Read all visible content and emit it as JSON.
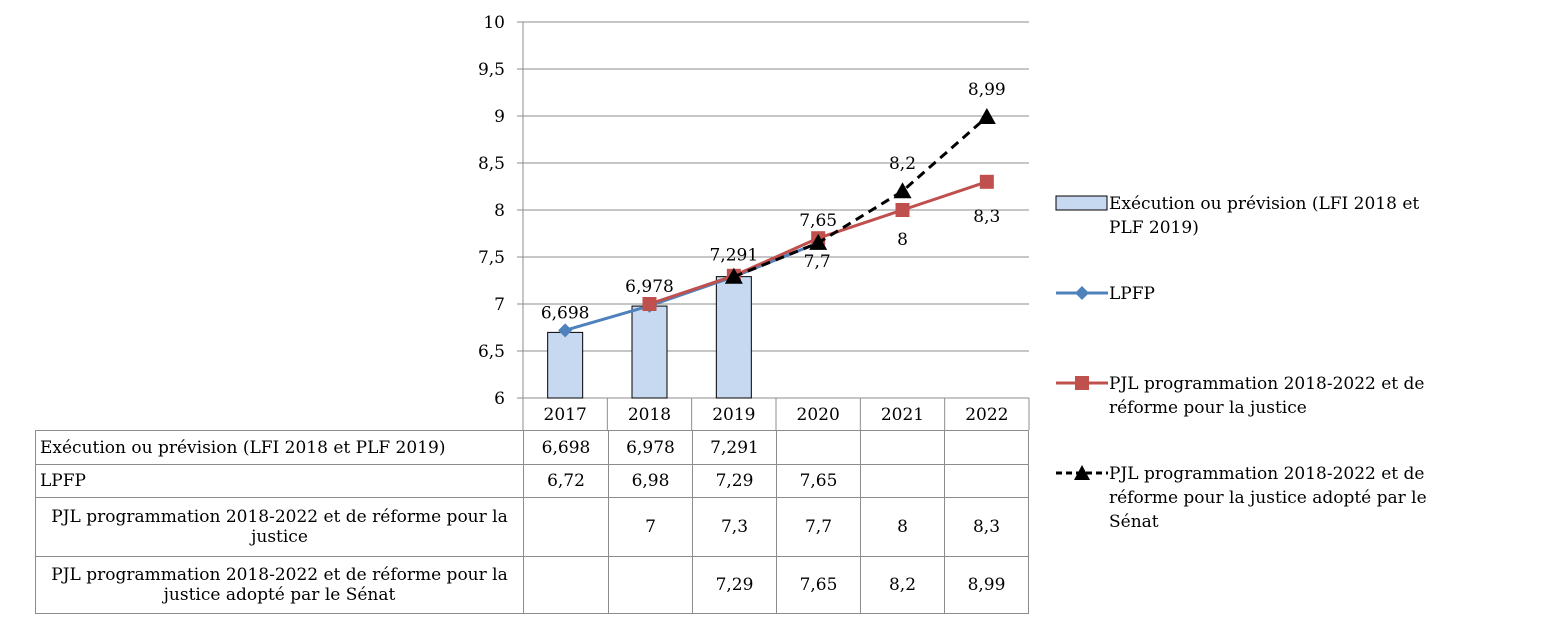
{
  "chart_data": {
    "type": "bar",
    "categories": [
      "2017",
      "2018",
      "2019",
      "2020",
      "2021",
      "2022"
    ],
    "ylim": [
      6,
      10
    ],
    "yticks": [
      "6",
      "6,5",
      "7",
      "7,5",
      "8",
      "8,5",
      "9",
      "9,5",
      "10"
    ],
    "grid": true,
    "legend_position": "right",
    "series": [
      {
        "name": "Exécution ou prévision (LFI 2018 et PLF 2019)",
        "kind": "bar",
        "color": "#c6d9f1",
        "values": [
          6.698,
          6.978,
          7.291,
          null,
          null,
          null
        ],
        "labels": [
          "6,698",
          "6,978",
          "7,291",
          "",
          "",
          ""
        ]
      },
      {
        "name": "LPFP",
        "kind": "line",
        "marker": "diamond",
        "color": "#4f81bd",
        "values": [
          6.72,
          6.98,
          7.29,
          7.65,
          null,
          null
        ],
        "labels": [
          "6,72",
          "6,98",
          "7,29",
          "7,65",
          "",
          ""
        ]
      },
      {
        "name": "PJL programmation 2018-2022 et de réforme pour la justice",
        "kind": "line",
        "marker": "square",
        "color": "#c0504d",
        "values": [
          null,
          7,
          7.3,
          7.7,
          8,
          8.3
        ],
        "labels": [
          "",
          "7",
          "7,3",
          "7,7",
          "8",
          "8,3"
        ]
      },
      {
        "name": "PJL programmation 2018-2022 et de réforme pour la justice adopté par le Sénat",
        "kind": "line",
        "marker": "triangle",
        "dashed": true,
        "color": "#000000",
        "values": [
          null,
          null,
          7.29,
          7.65,
          8.2,
          8.99
        ],
        "labels": [
          "",
          "",
          "7,29",
          "7,65",
          "8,2",
          "8,99"
        ]
      }
    ],
    "point_labels": [
      {
        "text": "6,698",
        "x": "2017",
        "y": 6.698
      },
      {
        "text": "6,978",
        "x": "2018",
        "y": 6.978
      },
      {
        "text": "7,291",
        "x": "2019",
        "y": 7.291
      },
      {
        "text": "7,65",
        "x": "2020",
        "y": 7.65
      },
      {
        "text": "7,7",
        "x": "2020",
        "y": 7.7
      },
      {
        "text": "8",
        "x": "2021",
        "y": 8
      },
      {
        "text": "8,2",
        "x": "2021",
        "y": 8.2
      },
      {
        "text": "8,3",
        "x": "2022",
        "y": 8.3
      },
      {
        "text": "8,99",
        "x": "2022",
        "y": 8.99
      }
    ]
  },
  "table": {
    "rows": [
      {
        "label": "Exécution ou prévision (LFI 2018 et PLF 2019)",
        "cells": [
          "6,698",
          "6,978",
          "7,291",
          "",
          "",
          ""
        ]
      },
      {
        "label": "LPFP",
        "cells": [
          "6,72",
          "6,98",
          "7,29",
          "7,65",
          "",
          ""
        ]
      },
      {
        "label": "PJL programmation 2018-2022 et de réforme pour la justice",
        "cells": [
          "",
          "7",
          "7,3",
          "7,7",
          "8",
          "8,3"
        ]
      },
      {
        "label": "PJL programmation 2018-2022 et de réforme pour la justice adopté par le Sénat",
        "cells": [
          "",
          "",
          "7,29",
          "7,65",
          "8,2",
          "8,99"
        ]
      }
    ]
  },
  "legend": [
    {
      "label": "Exécution ou prévision (LFI 2018 et PLF 2019)",
      "symbol": "bar"
    },
    {
      "label": "LPFP",
      "symbol": "diamond-line"
    },
    {
      "label": "PJL programmation 2018-2022 et de réforme pour la justice",
      "symbol": "square-line"
    },
    {
      "label": "PJL programmation 2018-2022 et de réforme pour la justice adopté par le Sénat",
      "symbol": "triangle-dashed-line"
    }
  ]
}
